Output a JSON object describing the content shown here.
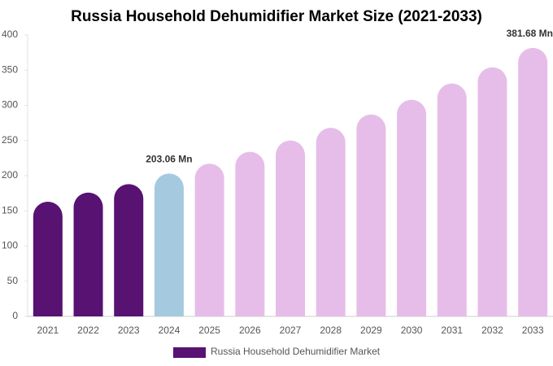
{
  "chart_data": {
    "type": "bar",
    "title": "Russia Household Dehumidifier Market Size (2021-2033)",
    "categories": [
      "2021",
      "2022",
      "2023",
      "2024",
      "2025",
      "2026",
      "2027",
      "2028",
      "2029",
      "2030",
      "2031",
      "2032",
      "2033"
    ],
    "series": [
      {
        "name": "Russia Household Dehumidifier Market",
        "color": "#581272",
        "values": [
          163,
          176,
          188,
          203.06,
          217,
          234,
          250,
          268,
          287,
          308,
          331,
          354,
          381.68
        ],
        "value_labels": [
          null,
          null,
          null,
          "203.06 Mn",
          null,
          null,
          null,
          null,
          null,
          null,
          null,
          null,
          "381.68 Mn"
        ],
        "colors": [
          "#581272",
          "#581272",
          "#581272",
          "#a5cadf",
          "#e6bde9",
          "#e6bde9",
          "#e6bde9",
          "#e6bde9",
          "#e6bde9",
          "#e6bde9",
          "#e6bde9",
          "#e6bde9",
          "#e6bde9"
        ]
      }
    ],
    "ylim": [
      0,
      400
    ],
    "yticks": [
      0,
      50,
      100,
      150,
      200,
      250,
      300,
      350,
      400
    ],
    "grid": false
  }
}
